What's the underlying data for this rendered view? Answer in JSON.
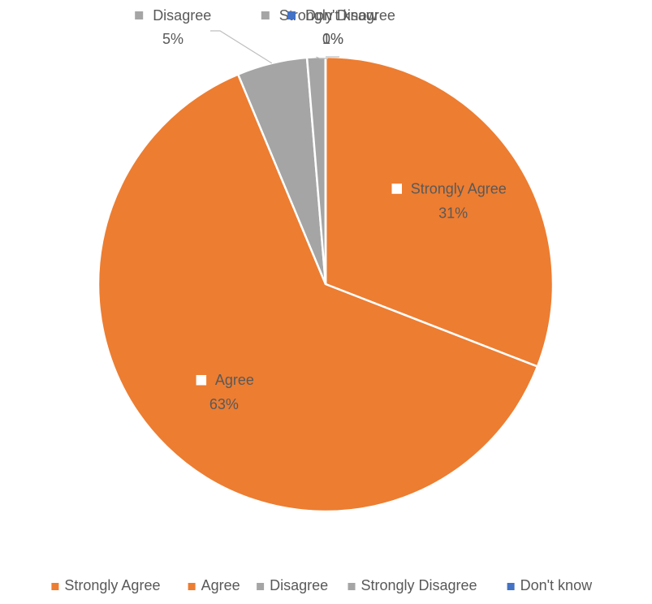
{
  "chart_data": {
    "type": "pie",
    "title": "",
    "categories": [
      "Strongly Agree",
      "Agree",
      "Disagree",
      "Strongly Disagree",
      "Don't know"
    ],
    "values": [
      31,
      63,
      5,
      1.3,
      0.01
    ],
    "labels": [
      "31%",
      "63%",
      "5%",
      "1%",
      "0%"
    ],
    "colors": [
      "#ED7D31",
      "#ED7D31",
      "#A5A5A5",
      "#A5A5A5",
      "#4472C4"
    ],
    "legend_position": "bottom",
    "start_angle_deg": 0,
    "direction": "clockwise"
  }
}
